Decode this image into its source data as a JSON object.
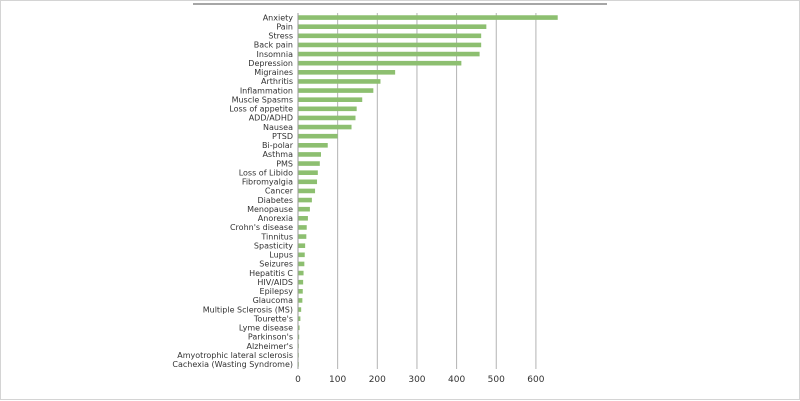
{
  "chart_data": {
    "type": "bar",
    "orientation": "horizontal",
    "categories": [
      "Anxiety",
      "Pain",
      "Stress",
      "Back pain",
      "Insomnia",
      "Depression",
      "Migraines",
      "Arthritis",
      "Inflammation",
      "Muscle Spasms",
      "Loss of appetite",
      "ADD/ADHD",
      "Nausea",
      "PTSD",
      "Bi-polar",
      "Asthma",
      "PMS",
      "Loss of Libido",
      "Fibromyalgia",
      "Cancer",
      "Diabetes",
      "Menopause",
      "Anorexia",
      "Crohn's disease",
      "Tinnitus",
      "Spasticity",
      "Lupus",
      "Seizures",
      "Hepatitis C",
      "HIV/AIDS",
      "Epilepsy",
      "Glaucoma",
      "Multiple Sclerosis (MS)",
      "Tourette's",
      "Lyme disease",
      "Parkinson's",
      "Alzheimer's",
      "Amyotrophic lateral sclerosis",
      "Cachexia (Wasting Syndrome)"
    ],
    "values": [
      655,
      475,
      462,
      462,
      458,
      412,
      245,
      208,
      190,
      162,
      148,
      145,
      135,
      100,
      75,
      58,
      55,
      50,
      48,
      43,
      35,
      30,
      25,
      22,
      21,
      18,
      17,
      16,
      14,
      13,
      12,
      11,
      8,
      6,
      4,
      3,
      2,
      1,
      1
    ],
    "xlim": [
      0,
      650
    ],
    "xticks": [
      "0",
      "100",
      "200",
      "300",
      "400",
      "500",
      "600"
    ],
    "xtick_values": [
      0,
      100,
      200,
      300,
      400,
      500,
      600
    ],
    "grid": true,
    "bar_color": "#8dbf70",
    "grid_color": "#b3b3b3",
    "title": "",
    "xlabel": "",
    "ylabel": ""
  }
}
